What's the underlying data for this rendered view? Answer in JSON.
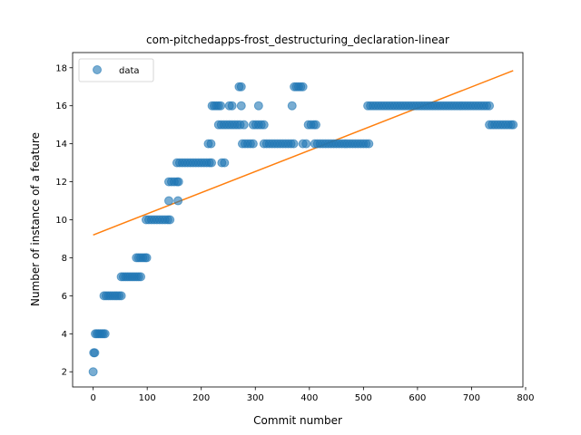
{
  "chart_data": {
    "type": "scatter",
    "title": "com-pitchedapps-frost_destructuring_declaration-linear",
    "xlabel": "Commit number",
    "ylabel": "Number of instance of a feature",
    "xlim": [
      -38,
      795
    ],
    "ylim": [
      1.2,
      18.8
    ],
    "xticks": [
      0,
      100,
      200,
      300,
      400,
      500,
      600,
      700,
      800
    ],
    "yticks": [
      2,
      4,
      6,
      8,
      10,
      12,
      14,
      16,
      18
    ],
    "grid": false,
    "legend": {
      "position": "top-left",
      "entries": [
        "data"
      ]
    },
    "colors": {
      "data": "#1f77b4",
      "fit": "#ff7f0e"
    },
    "series": [
      {
        "name": "data",
        "kind": "scatter",
        "points": [
          [
            0,
            2
          ],
          [
            1,
            3
          ],
          [
            3,
            3
          ],
          [
            4,
            4
          ],
          [
            7,
            4
          ],
          [
            10,
            4
          ],
          [
            13,
            4
          ],
          [
            16,
            4
          ],
          [
            19,
            4
          ],
          [
            22,
            4
          ],
          [
            20,
            6
          ],
          [
            24,
            6
          ],
          [
            28,
            6
          ],
          [
            32,
            6
          ],
          [
            36,
            6
          ],
          [
            40,
            6
          ],
          [
            44,
            6
          ],
          [
            48,
            6
          ],
          [
            52,
            6
          ],
          [
            52,
            7
          ],
          [
            56,
            7
          ],
          [
            60,
            7
          ],
          [
            64,
            7
          ],
          [
            68,
            7
          ],
          [
            72,
            7
          ],
          [
            76,
            7
          ],
          [
            80,
            7
          ],
          [
            84,
            7
          ],
          [
            88,
            7
          ],
          [
            80,
            8
          ],
          [
            84,
            8
          ],
          [
            88,
            8
          ],
          [
            92,
            8
          ],
          [
            96,
            8
          ],
          [
            99,
            8
          ],
          [
            98,
            10
          ],
          [
            103,
            10
          ],
          [
            108,
            10
          ],
          [
            113,
            10
          ],
          [
            118,
            10
          ],
          [
            123,
            10
          ],
          [
            128,
            10
          ],
          [
            133,
            10
          ],
          [
            138,
            10
          ],
          [
            142,
            10
          ],
          [
            140,
            11
          ],
          [
            157,
            11
          ],
          [
            140,
            12
          ],
          [
            145,
            12
          ],
          [
            150,
            12
          ],
          [
            155,
            12
          ],
          [
            158,
            12
          ],
          [
            155,
            13
          ],
          [
            160,
            13
          ],
          [
            165,
            13
          ],
          [
            170,
            13
          ],
          [
            175,
            13
          ],
          [
            180,
            13
          ],
          [
            185,
            13
          ],
          [
            190,
            13
          ],
          [
            195,
            13
          ],
          [
            200,
            13
          ],
          [
            205,
            13
          ],
          [
            210,
            13
          ],
          [
            215,
            13
          ],
          [
            219,
            13
          ],
          [
            238,
            13
          ],
          [
            243,
            13
          ],
          [
            213,
            14
          ],
          [
            218,
            14
          ],
          [
            220,
            16
          ],
          [
            224,
            16
          ],
          [
            228,
            16
          ],
          [
            232,
            16
          ],
          [
            236,
            16
          ],
          [
            232,
            15
          ],
          [
            237,
            15
          ],
          [
            242,
            15
          ],
          [
            247,
            15
          ],
          [
            252,
            15
          ],
          [
            257,
            15
          ],
          [
            262,
            15
          ],
          [
            267,
            15
          ],
          [
            272,
            15
          ],
          [
            252,
            16
          ],
          [
            257,
            16
          ],
          [
            270,
            17
          ],
          [
            274,
            17
          ],
          [
            274,
            16
          ],
          [
            279,
            15
          ],
          [
            276,
            14
          ],
          [
            281,
            14
          ],
          [
            286,
            14
          ],
          [
            291,
            14
          ],
          [
            296,
            14
          ],
          [
            296,
            15
          ],
          [
            301,
            15
          ],
          [
            306,
            15
          ],
          [
            311,
            15
          ],
          [
            316,
            15
          ],
          [
            306,
            16
          ],
          [
            316,
            14
          ],
          [
            321,
            14
          ],
          [
            326,
            14
          ],
          [
            331,
            14
          ],
          [
            336,
            14
          ],
          [
            341,
            14
          ],
          [
            346,
            14
          ],
          [
            351,
            14
          ],
          [
            356,
            14
          ],
          [
            361,
            14
          ],
          [
            366,
            14
          ],
          [
            371,
            14
          ],
          [
            368,
            16
          ],
          [
            372,
            17
          ],
          [
            376,
            17
          ],
          [
            380,
            17
          ],
          [
            384,
            17
          ],
          [
            388,
            17
          ],
          [
            388,
            14
          ],
          [
            394,
            14
          ],
          [
            398,
            15
          ],
          [
            403,
            15
          ],
          [
            408,
            15
          ],
          [
            412,
            15
          ],
          [
            410,
            14
          ],
          [
            415,
            14
          ],
          [
            420,
            14
          ],
          [
            425,
            14
          ],
          [
            430,
            14
          ],
          [
            435,
            14
          ],
          [
            440,
            14
          ],
          [
            445,
            14
          ],
          [
            450,
            14
          ],
          [
            455,
            14
          ],
          [
            460,
            14
          ],
          [
            465,
            14
          ],
          [
            470,
            14
          ],
          [
            475,
            14
          ],
          [
            480,
            14
          ],
          [
            485,
            14
          ],
          [
            490,
            14
          ],
          [
            495,
            14
          ],
          [
            500,
            14
          ],
          [
            505,
            14
          ],
          [
            510,
            14
          ],
          [
            508,
            16
          ],
          [
            513,
            16
          ],
          [
            518,
            16
          ],
          [
            523,
            16
          ],
          [
            528,
            16
          ],
          [
            533,
            16
          ],
          [
            538,
            16
          ],
          [
            543,
            16
          ],
          [
            548,
            16
          ],
          [
            553,
            16
          ],
          [
            558,
            16
          ],
          [
            563,
            16
          ],
          [
            568,
            16
          ],
          [
            573,
            16
          ],
          [
            578,
            16
          ],
          [
            583,
            16
          ],
          [
            588,
            16
          ],
          [
            593,
            16
          ],
          [
            598,
            16
          ],
          [
            603,
            16
          ],
          [
            608,
            16
          ],
          [
            613,
            16
          ],
          [
            618,
            16
          ],
          [
            623,
            16
          ],
          [
            628,
            16
          ],
          [
            633,
            16
          ],
          [
            638,
            16
          ],
          [
            643,
            16
          ],
          [
            648,
            16
          ],
          [
            653,
            16
          ],
          [
            658,
            16
          ],
          [
            663,
            16
          ],
          [
            668,
            16
          ],
          [
            673,
            16
          ],
          [
            678,
            16
          ],
          [
            683,
            16
          ],
          [
            688,
            16
          ],
          [
            693,
            16
          ],
          [
            698,
            16
          ],
          [
            703,
            16
          ],
          [
            708,
            16
          ],
          [
            713,
            16
          ],
          [
            718,
            16
          ],
          [
            723,
            16
          ],
          [
            728,
            16
          ],
          [
            733,
            16
          ],
          [
            733,
            15
          ],
          [
            738,
            15
          ],
          [
            743,
            15
          ],
          [
            748,
            15
          ],
          [
            753,
            15
          ],
          [
            758,
            15
          ],
          [
            763,
            15
          ],
          [
            768,
            15
          ],
          [
            773,
            15
          ],
          [
            777,
            15
          ]
        ]
      },
      {
        "name": "",
        "kind": "line",
        "points": [
          [
            0,
            9.2
          ],
          [
            777,
            17.85
          ]
        ]
      }
    ]
  }
}
